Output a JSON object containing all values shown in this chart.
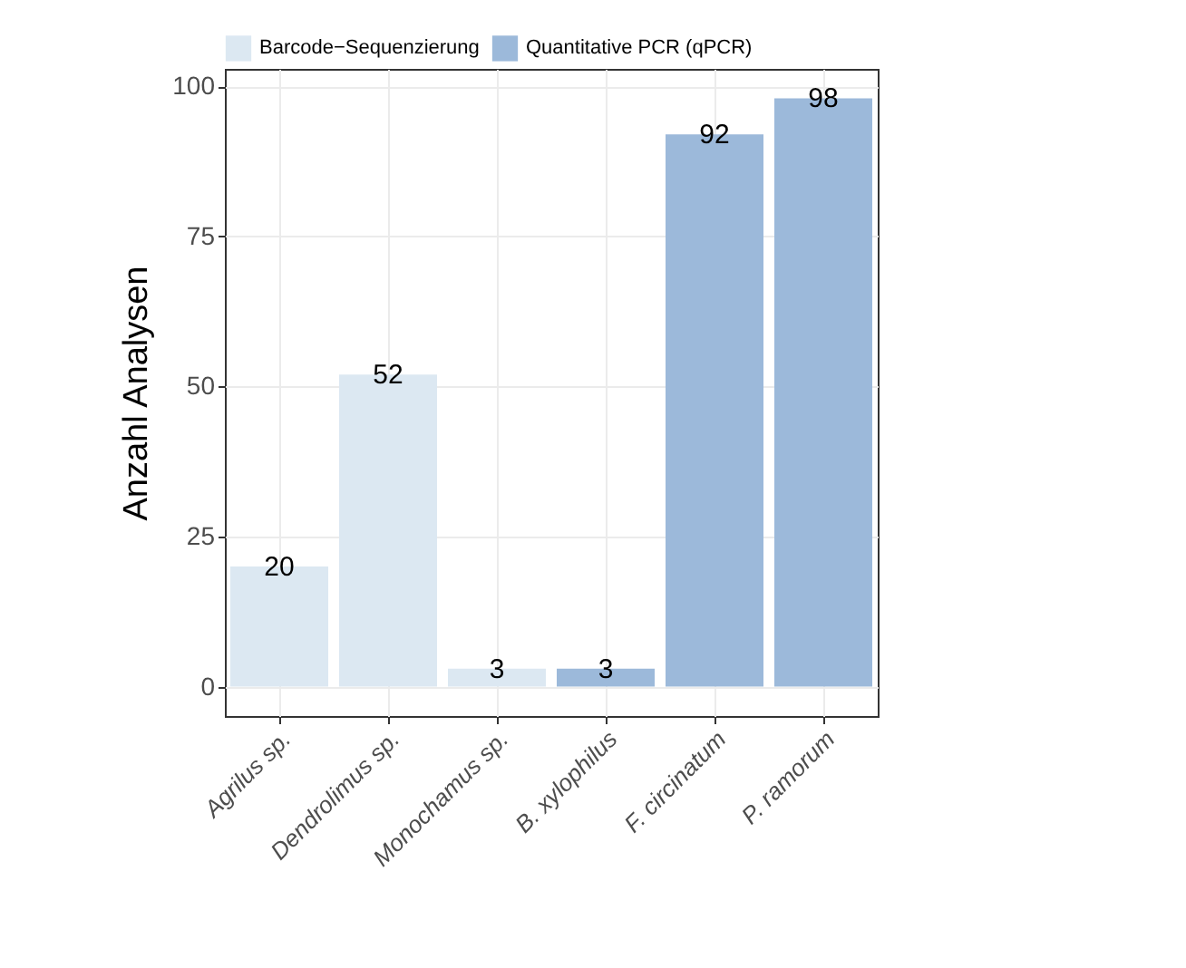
{
  "chart_data": {
    "type": "bar",
    "ylabel": "Anzahl Analysen",
    "categories": [
      "Agrilus sp.",
      "Dendrolimus sp.",
      "Monochamus sp.",
      "B. xylophilus",
      "F. circinatum",
      "P. ramorum"
    ],
    "series": [
      {
        "name": "Barcode−Sequenzierung",
        "color": "#dce8f2",
        "values": [
          20,
          52,
          3,
          null,
          null,
          null
        ]
      },
      {
        "name": "Quantitative PCR (qPCR)",
        "color": "#9cb9da",
        "values": [
          null,
          null,
          null,
          3,
          92,
          98
        ]
      }
    ],
    "ylim": [
      -4.9,
      102.9
    ],
    "yticks": [
      0,
      25,
      50,
      75,
      100
    ],
    "grid": true,
    "legend": "top",
    "data_labels": true
  }
}
